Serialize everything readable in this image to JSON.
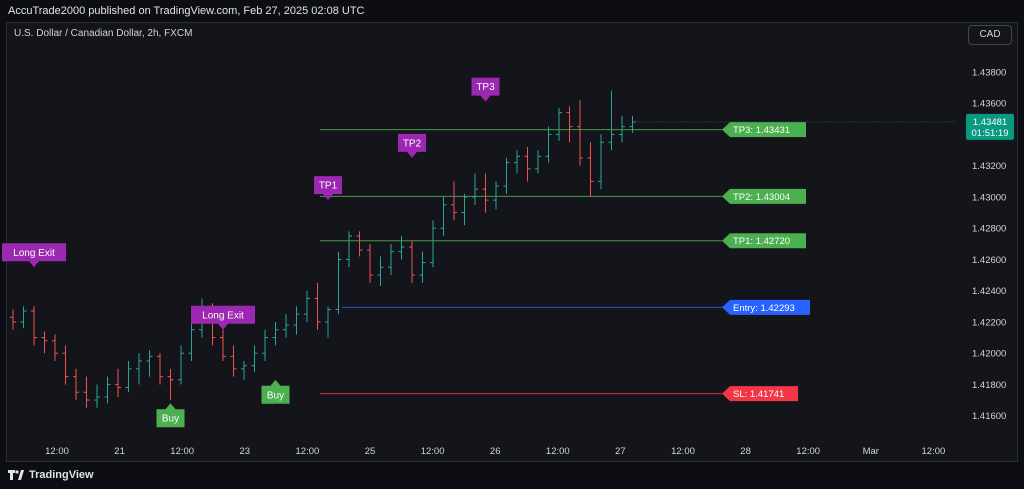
{
  "header": {
    "published": "AccuTrade2000 published on TradingView.com, Feb 27, 2025 02:08 UTC"
  },
  "chart_header": {
    "symbol": "U.S. Dollar / Canadian Dollar, 2h, FXCM",
    "currency_button": "CAD"
  },
  "footer": {
    "brand": "TradingView"
  },
  "colors": {
    "up": "#26a69a",
    "down": "#ef5350",
    "tp_line": "#4caf50",
    "tp_label": "#4caf50",
    "entry": "#2962ff",
    "sl": "#f23645",
    "signal_purple": "#9c27b0",
    "buy_green": "#4caf50",
    "price_badge": "#089981"
  },
  "chart_data": {
    "type": "ohlc",
    "x_ticks": [
      "12:00",
      "21",
      "12:00",
      "23",
      "12:00",
      "25",
      "12:00",
      "26",
      "12:00",
      "27",
      "12:00",
      "28",
      "12:00",
      "Mar",
      "12:00"
    ],
    "y_ticks": [
      "1.43800",
      "1.43600",
      "1.43400",
      "1.43200",
      "1.43000",
      "1.42800",
      "1.42600",
      "1.42400",
      "1.42200",
      "1.42000",
      "1.41800",
      "1.41600"
    ],
    "y_tick_values": [
      1.438,
      1.436,
      1.434,
      1.432,
      1.43,
      1.428,
      1.426,
      1.424,
      1.422,
      1.42,
      1.418,
      1.416
    ],
    "ylim": [
      1.4147,
      1.4396
    ],
    "bars": [
      [
        1.4223,
        1.4228,
        1.4215,
        1.422
      ],
      [
        1.422,
        1.423,
        1.4216,
        1.4227
      ],
      [
        1.4227,
        1.423,
        1.4205,
        1.421
      ],
      [
        1.421,
        1.4214,
        1.42,
        1.4208
      ],
      [
        1.4208,
        1.4212,
        1.4195,
        1.42
      ],
      [
        1.42,
        1.4205,
        1.418,
        1.4185
      ],
      [
        1.4185,
        1.419,
        1.417,
        1.4175
      ],
      [
        1.4175,
        1.4185,
        1.4165,
        1.417
      ],
      [
        1.417,
        1.418,
        1.4165,
        1.4172
      ],
      [
        1.4172,
        1.4185,
        1.4168,
        1.418
      ],
      [
        1.418,
        1.419,
        1.4172,
        1.4178
      ],
      [
        1.4178,
        1.4195,
        1.4175,
        1.419
      ],
      [
        1.419,
        1.42,
        1.418,
        1.4195
      ],
      [
        1.4195,
        1.4202,
        1.4185,
        1.4198
      ],
      [
        1.4198,
        1.42,
        1.418,
        1.4185
      ],
      [
        1.4185,
        1.419,
        1.417,
        1.4183
      ],
      [
        1.4183,
        1.4205,
        1.418,
        1.42
      ],
      [
        1.42,
        1.422,
        1.4195,
        1.4215
      ],
      [
        1.4215,
        1.4235,
        1.421,
        1.423
      ],
      [
        1.423,
        1.4232,
        1.4205,
        1.421
      ],
      [
        1.421,
        1.4215,
        1.4195,
        1.4198
      ],
      [
        1.4198,
        1.4205,
        1.4185,
        1.419
      ],
      [
        1.419,
        1.4195,
        1.4183,
        1.4192
      ],
      [
        1.4192,
        1.4205,
        1.4188,
        1.42
      ],
      [
        1.42,
        1.4215,
        1.4195,
        1.421
      ],
      [
        1.421,
        1.422,
        1.4205,
        1.4215
      ],
      [
        1.4215,
        1.4225,
        1.421,
        1.4218
      ],
      [
        1.4218,
        1.423,
        1.4212,
        1.4225
      ],
      [
        1.4225,
        1.424,
        1.422,
        1.4235
      ],
      [
        1.4235,
        1.4245,
        1.4215,
        1.422
      ],
      [
        1.422,
        1.423,
        1.421,
        1.4228
      ],
      [
        1.4228,
        1.4265,
        1.4225,
        1.426
      ],
      [
        1.426,
        1.4278,
        1.4255,
        1.4275
      ],
      [
        1.4275,
        1.4278,
        1.4262,
        1.4266
      ],
      [
        1.4266,
        1.427,
        1.4245,
        1.425
      ],
      [
        1.425,
        1.4262,
        1.4243,
        1.4255
      ],
      [
        1.4255,
        1.427,
        1.425,
        1.4265
      ],
      [
        1.4265,
        1.4275,
        1.426,
        1.4268
      ],
      [
        1.4268,
        1.4272,
        1.4245,
        1.425
      ],
      [
        1.425,
        1.4265,
        1.4245,
        1.4258
      ],
      [
        1.4258,
        1.4285,
        1.4255,
        1.428
      ],
      [
        1.428,
        1.43,
        1.4275,
        1.4295
      ],
      [
        1.4295,
        1.431,
        1.4285,
        1.429
      ],
      [
        1.429,
        1.4302,
        1.4282,
        1.43
      ],
      [
        1.43,
        1.4315,
        1.4295,
        1.4305
      ],
      [
        1.4305,
        1.4315,
        1.429,
        1.4298
      ],
      [
        1.4298,
        1.431,
        1.4292,
        1.4307
      ],
      [
        1.4307,
        1.4325,
        1.4302,
        1.4322
      ],
      [
        1.4322,
        1.433,
        1.4315,
        1.4326
      ],
      [
        1.4326,
        1.4332,
        1.431,
        1.4318
      ],
      [
        1.4318,
        1.433,
        1.4315,
        1.4326
      ],
      [
        1.4326,
        1.4345,
        1.4322,
        1.434
      ],
      [
        1.434,
        1.4357,
        1.4336,
        1.4354
      ],
      [
        1.4354,
        1.4358,
        1.4335,
        1.4345
      ],
      [
        1.4345,
        1.4362,
        1.432,
        1.4325
      ],
      [
        1.4325,
        1.4335,
        1.43,
        1.431
      ],
      [
        1.431,
        1.434,
        1.4305,
        1.4335
      ],
      [
        1.4335,
        1.4368,
        1.433,
        1.434
      ],
      [
        1.434,
        1.4352,
        1.4335,
        1.4345
      ],
      [
        1.4345,
        1.4352,
        1.4341,
        1.4348
      ]
    ],
    "levels": [
      {
        "name": "TP3",
        "label": "TP3: 1.43431",
        "value": 1.43431,
        "kind": "tp"
      },
      {
        "name": "TP2",
        "label": "TP2: 1.43004",
        "value": 1.43004,
        "kind": "tp"
      },
      {
        "name": "TP1",
        "label": "TP1: 1.42720",
        "value": 1.4272,
        "kind": "tp"
      },
      {
        "name": "Entry",
        "label": "Entry: 1.42293",
        "value": 1.42293,
        "kind": "entry"
      },
      {
        "name": "SL",
        "label": "SL: 1.41741",
        "value": 1.41741,
        "kind": "sl"
      }
    ],
    "signals": [
      {
        "text": "Long Exit",
        "bar": 2,
        "price": 1.4255,
        "kind": "exit",
        "dir": "down"
      },
      {
        "text": "Buy",
        "bar": 15,
        "price": 1.4168,
        "kind": "buy",
        "dir": "up"
      },
      {
        "text": "Long Exit",
        "bar": 20,
        "price": 1.4215,
        "kind": "exit",
        "dir": "down"
      },
      {
        "text": "Buy",
        "bar": 25,
        "price": 1.4183,
        "kind": "buy",
        "dir": "up"
      },
      {
        "text": "TP1",
        "bar": 30,
        "price": 1.4298,
        "kind": "tp",
        "dir": "down"
      },
      {
        "text": "TP2",
        "bar": 38,
        "price": 1.4325,
        "kind": "tp",
        "dir": "down"
      },
      {
        "text": "TP3",
        "bar": 45,
        "price": 1.4361,
        "kind": "tp",
        "dir": "down"
      }
    ],
    "last_price": "1.43481",
    "countdown": "01:51:19"
  }
}
